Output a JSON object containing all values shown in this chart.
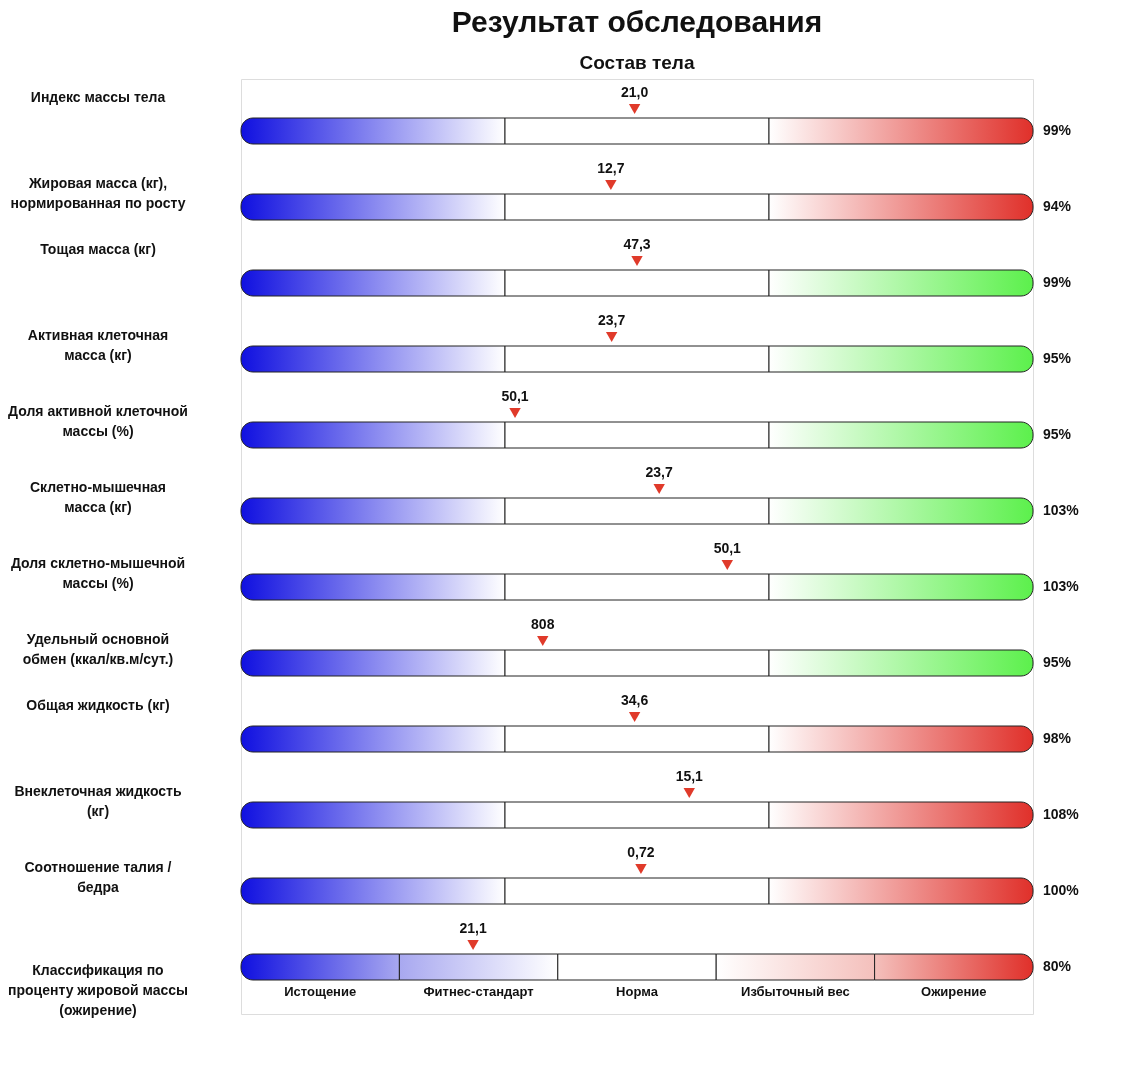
{
  "chart_data": {
    "type": "other",
    "title": "Результат обследования",
    "subtitle": "Состав тела",
    "categories": [
      "Индекс массы тела",
      "Жировая масса (кг),\nнормированная по росту",
      "Тощая масса (кг)",
      "Активная клеточная\nмасса (кг)",
      "Доля активной клеточной\nмассы (%)",
      "Склетно-мышечная\nмасса (кг)",
      "Доля склетно-мышечной\nмассы (%)",
      "Удельный основной\nобмен (ккал/кв.м/сут.)",
      "Общая жидкость (кг)",
      "Внеклеточная жидкость\n(кг)",
      "Соотношение  талия /\nбедра",
      "Классификация по\nпроценту жировой массы\n(ожирение)"
    ],
    "colors": [
      "#e0302a",
      "#e0302a",
      "#5cf04c",
      "#5cf04c",
      "#5cf04c",
      "#5cf04c",
      "#5cf04c",
      "#5cf04c",
      "#e0302a",
      "#e0302a",
      "#e0302a",
      "#e0302a"
    ],
    "series": [
      {
        "marker": "triangle",
        "color": "#e03a2a",
        "values": [
          21.0,
          12.7,
          47.3,
          23.7,
          50.1,
          23.7,
          50.1,
          808,
          34.6,
          15.1,
          0.72,
          21.1
        ],
        "value_labels": [
          "21,0",
          "12,7",
          "47,3",
          "23,7",
          "50,1",
          "23,7",
          "50,1",
          "808",
          "34,6",
          "15,1",
          "0,72",
          "21,1"
        ]
      }
    ],
    "annotations": [
      {
        "text": "99%",
        "y": "Индекс массы тела"
      },
      {
        "text": "94%",
        "y": "Жировая масса (кг),\nнормированная по росту"
      },
      {
        "text": "99%",
        "y": "Тощая масса (кг)"
      },
      {
        "text": "95%",
        "y": "Активная клеточная\nмасса (кг)"
      },
      {
        "text": "95%",
        "y": "Доля активной клеточной\nмассы (%)"
      },
      {
        "text": "103%",
        "y": "Склетно-мышечная\nмасса (кг)"
      },
      {
        "text": "103%",
        "y": "Доля склетно-мышечной\nмассы (%)"
      },
      {
        "text": "95%",
        "y": "Удельный основной\nобмен (ккал/кв.м/сут.)"
      },
      {
        "text": "98%",
        "y": "Общая жидкость (кг)"
      },
      {
        "text": "108%",
        "y": "Внеклеточная жидкость\n(кг)"
      },
      {
        "text": "100%",
        "y": "Соотношение  талия /\nбедра"
      },
      {
        "text": "80%",
        "y": "Классификация по\nпроценту жировой массы\n(ожирение)"
      },
      "Истощение",
      "Фитнес-стандарт",
      "Норма",
      "Избыточный вес",
      "Ожирение"
    ]
  }
}
